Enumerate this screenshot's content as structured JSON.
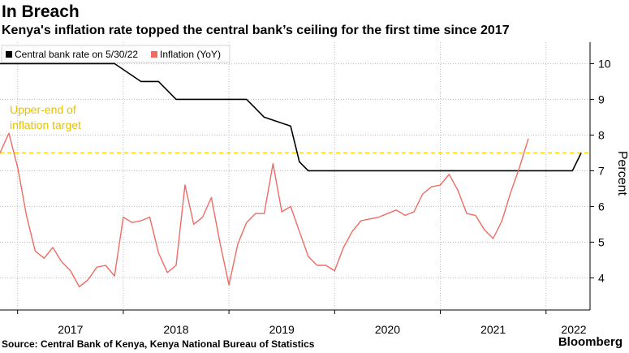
{
  "header": {
    "title": "In Breach",
    "subtitle": "Kenya's inflation rate topped the central bank’s ceiling for the first time since 2017"
  },
  "footer": {
    "source": "Source: Central Bank of Kenya, Kenya National Bureau of Statistics",
    "logo": "Bloomberg"
  },
  "colors": {
    "cbr": "#000000",
    "inflation": "#ef6b63",
    "target": "#ffd500",
    "grid": "#bdbdbd"
  },
  "chart_data": {
    "type": "line",
    "title": "In Breach",
    "subtitle": "Kenya's inflation rate topped the central bank’s ceiling for the first time since 2017",
    "ylabel": "Percent",
    "ylim": [
      3.1,
      10.6
    ],
    "yticks": [
      4,
      5,
      6,
      7,
      8,
      9,
      10
    ],
    "xlim": [
      "2016-11",
      "2022-06"
    ],
    "xticks": [
      {
        "label": "2017",
        "date": "2017-01"
      },
      {
        "label": "2018",
        "date": "2018-01"
      },
      {
        "label": "2019",
        "date": "2019-01"
      },
      {
        "label": "2020",
        "date": "2020-01"
      },
      {
        "label": "2021",
        "date": "2021-01"
      },
      {
        "label": "2022",
        "date": "2022-01"
      }
    ],
    "grid": true,
    "legend": "top-left",
    "annotation": {
      "text_lines": [
        "Upper-end of",
        "inflation target"
      ],
      "value": 7.5
    },
    "series": [
      {
        "name": "Central bank rate on 5/30/22",
        "color": "#000000",
        "step": true,
        "points": [
          [
            "2016-11",
            10.0
          ],
          [
            "2017-12",
            10.0
          ],
          [
            "2018-03",
            9.5
          ],
          [
            "2018-05",
            9.5
          ],
          [
            "2018-07",
            9.0
          ],
          [
            "2019-03",
            9.0
          ],
          [
            "2019-05",
            8.5
          ],
          [
            "2019-08",
            8.25
          ],
          [
            "2019-09",
            7.25
          ],
          [
            "2019-10",
            7.0
          ],
          [
            "2022-04",
            7.0
          ],
          [
            "2022-05",
            7.5
          ]
        ]
      },
      {
        "name": "Inflation (YoY)",
        "color": "#ef6b63",
        "points": [
          [
            "2016-11",
            7.5
          ],
          [
            "2016-12",
            8.05
          ],
          [
            "2017-01",
            7.1
          ],
          [
            "2017-02",
            5.75
          ],
          [
            "2017-03",
            4.75
          ],
          [
            "2017-04",
            4.55
          ],
          [
            "2017-05",
            4.85
          ],
          [
            "2017-06",
            4.45
          ],
          [
            "2017-07",
            4.2
          ],
          [
            "2017-08",
            3.75
          ],
          [
            "2017-09",
            3.95
          ],
          [
            "2017-10",
            4.3
          ],
          [
            "2017-11",
            4.35
          ],
          [
            "2017-12",
            4.05
          ],
          [
            "2018-01",
            5.7
          ],
          [
            "2018-02",
            5.55
          ],
          [
            "2018-03",
            5.6
          ],
          [
            "2018-04",
            5.7
          ],
          [
            "2018-05",
            4.7
          ],
          [
            "2018-06",
            4.15
          ],
          [
            "2018-07",
            4.35
          ],
          [
            "2018-08",
            6.6
          ],
          [
            "2018-09",
            5.5
          ],
          [
            "2018-10",
            5.7
          ],
          [
            "2018-11",
            6.25
          ],
          [
            "2018-12",
            4.95
          ],
          [
            "2019-01",
            3.8
          ],
          [
            "2019-02",
            4.95
          ],
          [
            "2019-03",
            5.55
          ],
          [
            "2019-04",
            5.8
          ],
          [
            "2019-05",
            5.8
          ],
          [
            "2019-06",
            7.2
          ],
          [
            "2019-07",
            5.85
          ],
          [
            "2019-08",
            6.0
          ],
          [
            "2019-09",
            5.3
          ],
          [
            "2019-10",
            4.6
          ],
          [
            "2019-11",
            4.35
          ],
          [
            "2019-12",
            4.35
          ],
          [
            "2020-01",
            4.2
          ],
          [
            "2020-02",
            4.85
          ],
          [
            "2020-03",
            5.3
          ],
          [
            "2020-04",
            5.6
          ],
          [
            "2020-05",
            5.65
          ],
          [
            "2020-06",
            5.7
          ],
          [
            "2020-07",
            5.8
          ],
          [
            "2020-08",
            5.9
          ],
          [
            "2020-09",
            5.75
          ],
          [
            "2020-10",
            5.85
          ],
          [
            "2020-11",
            6.35
          ],
          [
            "2020-12",
            6.55
          ],
          [
            "2021-01",
            6.6
          ],
          [
            "2021-02",
            6.9
          ],
          [
            "2021-03",
            6.45
          ],
          [
            "2021-04",
            5.8
          ],
          [
            "2021-05",
            5.75
          ],
          [
            "2021-06",
            5.35
          ],
          [
            "2021-07",
            5.1
          ],
          [
            "2021-08",
            5.6
          ],
          [
            "2021-09",
            6.4
          ],
          [
            "2021-10",
            7.1
          ],
          [
            "2021-11",
            7.9
          ]
        ]
      }
    ]
  }
}
